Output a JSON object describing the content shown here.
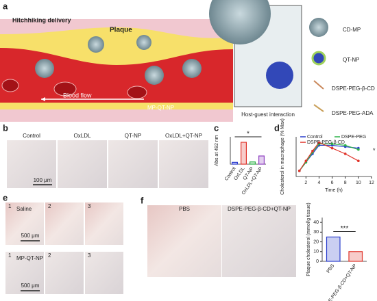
{
  "figure": {
    "panel_letters": [
      "a",
      "b",
      "c",
      "d",
      "e",
      "f"
    ],
    "a": {
      "title": "Hitchhiking delivery",
      "plaque": "Plaque",
      "blood_flow": "Blood flow",
      "carrier": "MP-QT-NP",
      "zoom_caption": "Host-guest interaction",
      "legend": [
        "CD-MP",
        "QT-NP",
        "DSPE-PEG-β-CD",
        "DSPE-PEG-ADA"
      ]
    },
    "b": {
      "columns": [
        "Control",
        "OxLDL",
        "QT-NP",
        "OxLDL+QT-NP"
      ],
      "scale_bar": "100 μm"
    },
    "e": {
      "rows": [
        "Saline",
        "MP-QT-NP"
      ],
      "image_numbers": [
        "1",
        "2",
        "3"
      ],
      "scale_bar": "500 μm"
    },
    "f": {
      "columns": [
        "PBS",
        "DSPE-PEG-β-CD+QT-NP"
      ]
    }
  },
  "chart_data": [
    {
      "type": "bar",
      "ylabel": "Abs at 492 nm",
      "categories": [
        "Control",
        "OxLDL",
        "QT-NP",
        "OxLDL+QT-NP"
      ],
      "values": [
        0.04,
        0.48,
        0.05,
        0.18
      ],
      "colors": [
        "#2e3fd0",
        "#e0342a",
        "#2fb34a",
        "#8e3fc0"
      ],
      "ylim": [
        0,
        0.6
      ],
      "annotation": "*"
    },
    {
      "type": "line",
      "xlabel": "Time (h)",
      "ylabel": "Cholesterol in macrophage (% Max)",
      "x": [
        1,
        2,
        3,
        4,
        6,
        8,
        10
      ],
      "xlim": [
        0.5,
        12
      ],
      "xticks": [
        2,
        4,
        6,
        8,
        10,
        12
      ],
      "ylim": [
        90,
        230
      ],
      "series": [
        {
          "name": "Control",
          "color": "#2b3fcc",
          "values": [
            110,
            140,
            170,
            200,
            200,
            195,
            190
          ]
        },
        {
          "name": "DSPE-PEG",
          "color": "#2fb34a",
          "values": [
            110,
            140,
            175,
            205,
            205,
            200,
            185
          ]
        },
        {
          "name": "DSPE-PEG-β-CD",
          "color": "#e0342a",
          "values": [
            110,
            145,
            180,
            210,
            190,
            170,
            145
          ]
        }
      ],
      "annotations": [
        "*",
        "*"
      ]
    },
    {
      "type": "bar",
      "ylabel": "Plaque cholesterol (mmol/g tissue)",
      "categories": [
        "PBS",
        "DSPE-PEG-β-CD+QT-NP"
      ],
      "values": [
        25,
        10
      ],
      "colors": [
        "#2b3fcc",
        "#e0342a"
      ],
      "ylim": [
        0,
        45
      ],
      "yticks": [
        0,
        10,
        20,
        30,
        40
      ],
      "annotation": "***"
    }
  ]
}
